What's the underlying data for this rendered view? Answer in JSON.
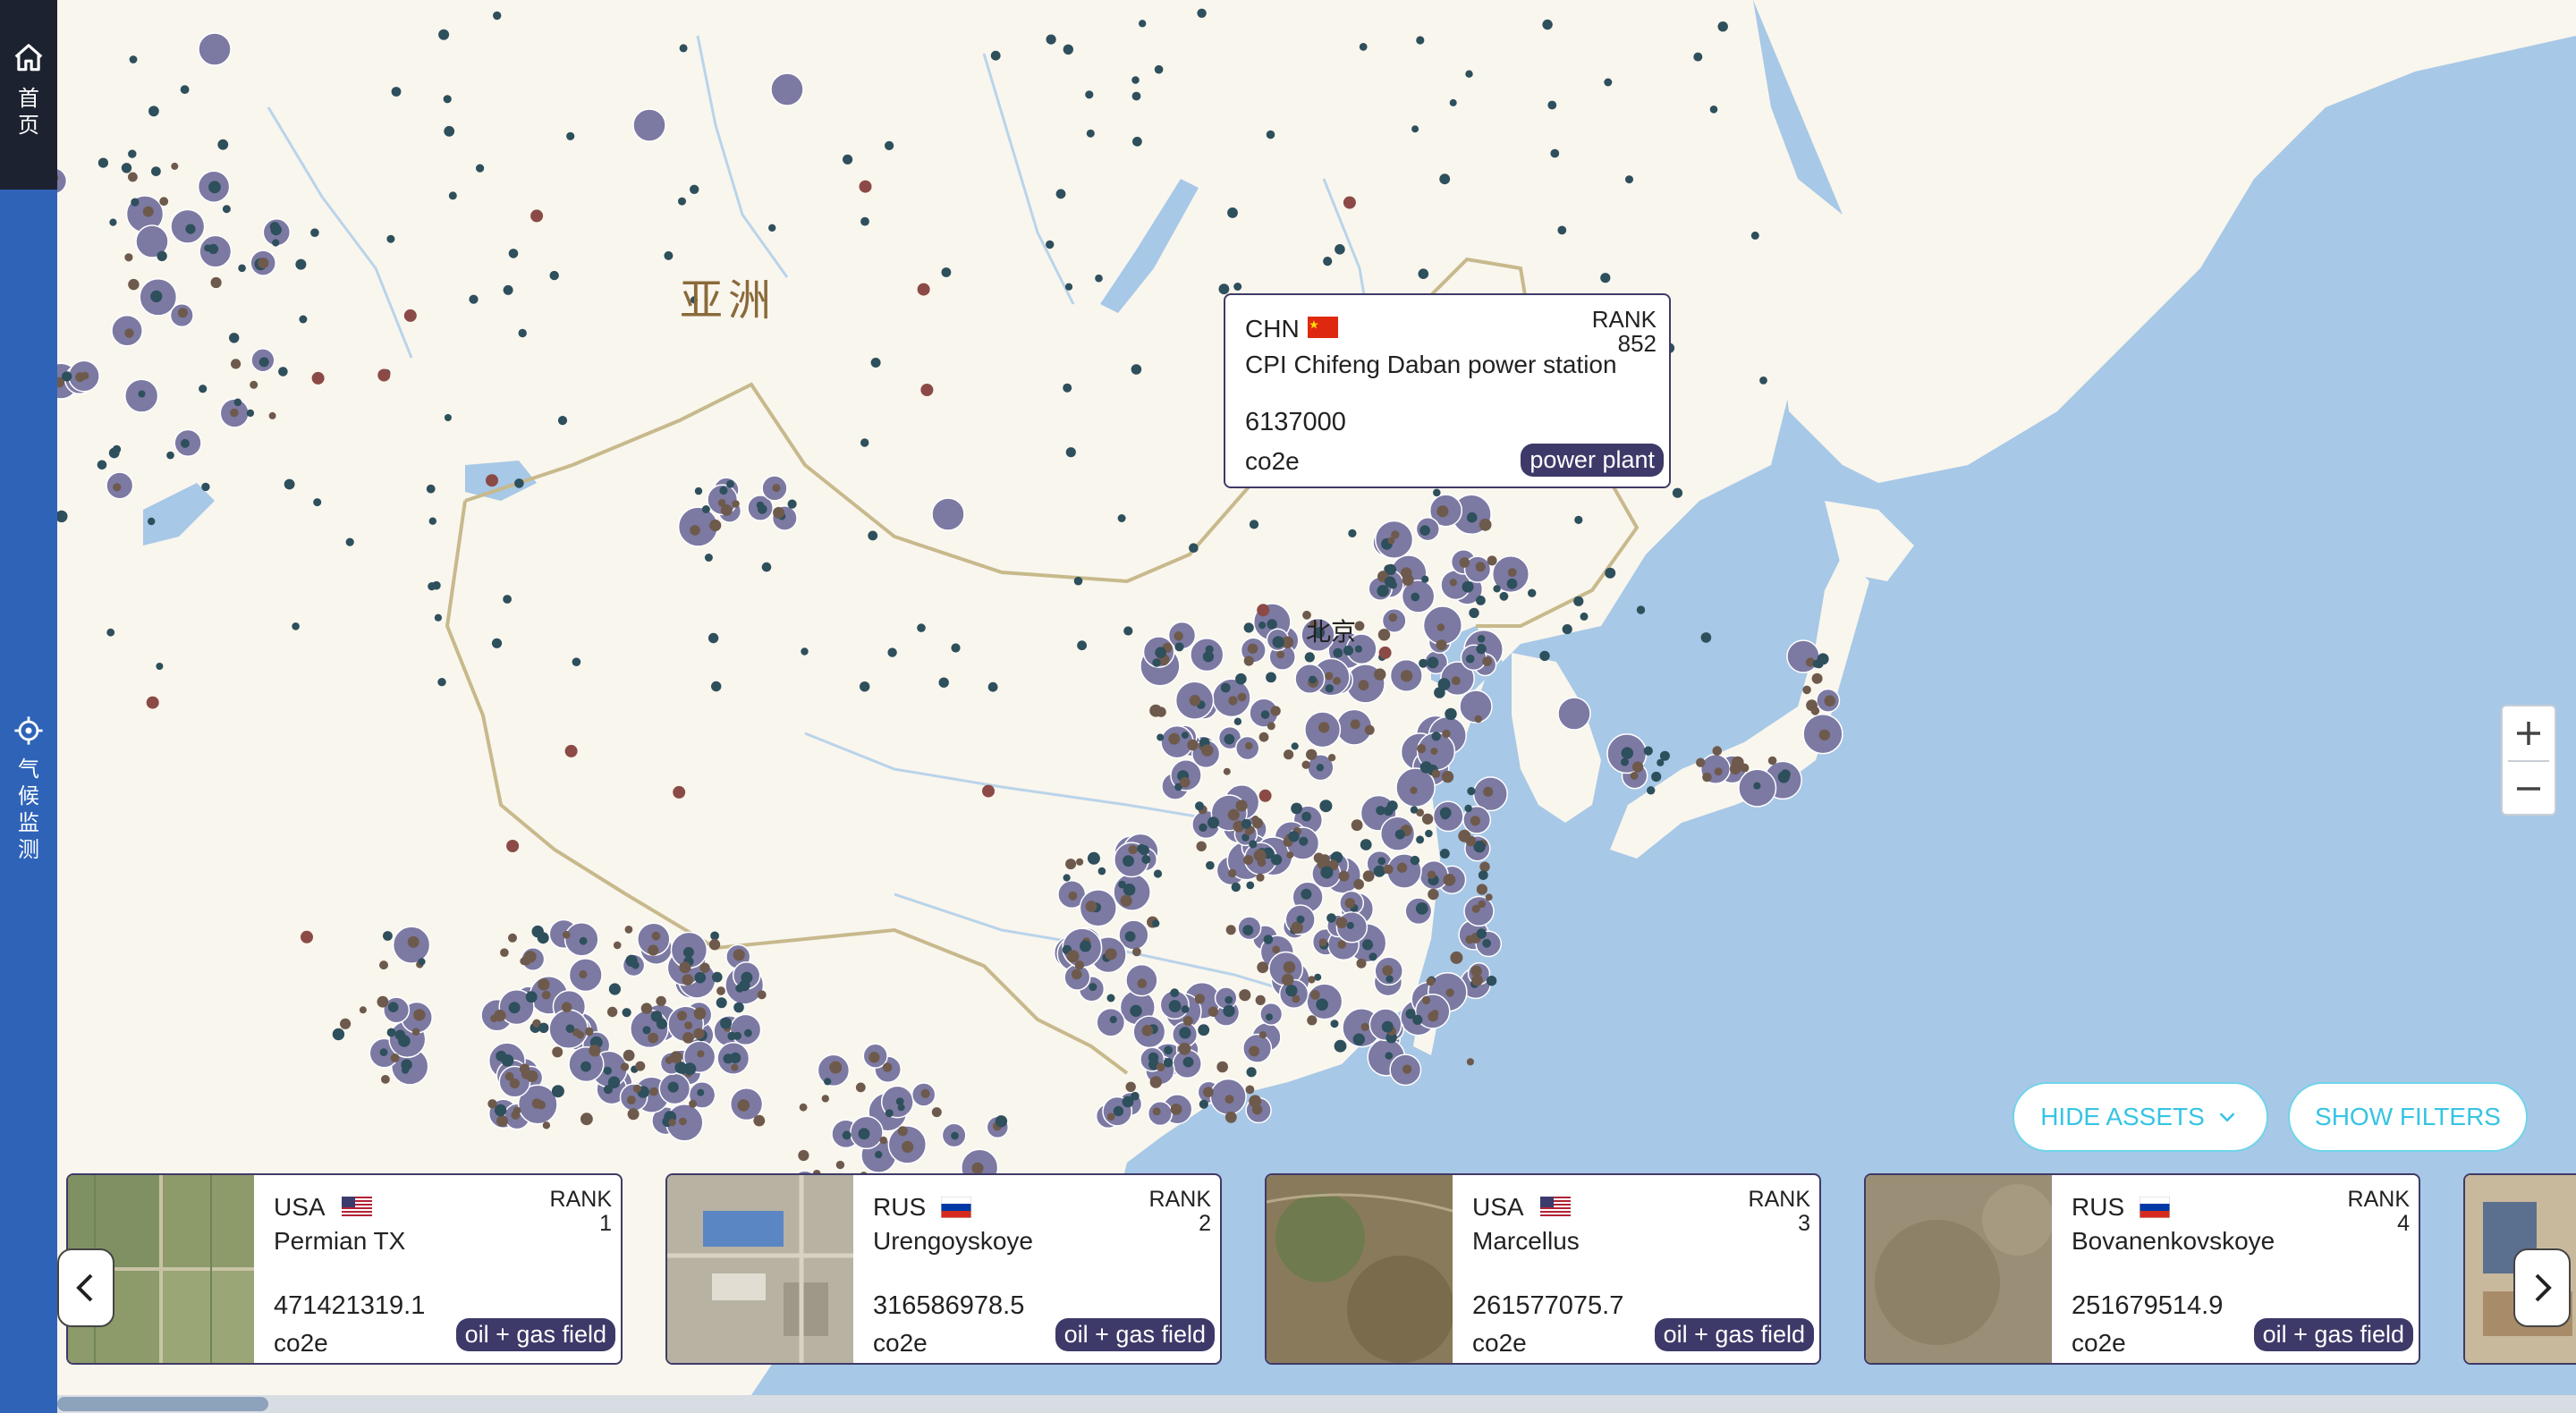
{
  "sidebar": {
    "home_label": "首页",
    "climate_label": "气候监测"
  },
  "map": {
    "continent_label": "亚洲",
    "city_label": "北京"
  },
  "popup": {
    "country_code": "CHN",
    "rank_label": "RANK",
    "rank_value": "852",
    "name": "CPI Chifeng Daban power station",
    "value": "6137000",
    "unit": "co2e",
    "category": "power plant"
  },
  "zoom": {
    "in_icon": "plus-icon",
    "out_icon": "minus-icon"
  },
  "controls": {
    "hide_assets_label": "HIDE ASSETS",
    "show_filters_label": "SHOW FILTERS"
  },
  "colors": {
    "sidebar": "#2e63b8",
    "sidebar_home": "#1d2230",
    "asset_bubble": "#7c7aa3",
    "asset_dot": "#2e4f5c",
    "field_dot": "#6e5a4c",
    "red_dot": "#8c4a46",
    "tag_bg": "#3d3968",
    "accent": "#36c4e3"
  },
  "cards": [
    {
      "country_code": "USA",
      "flag": "us-flag",
      "rank_label": "RANK",
      "rank_value": "1",
      "name": "Permian TX",
      "value": "471421319.1",
      "unit": "co2e",
      "category": "oil + gas field"
    },
    {
      "country_code": "RUS",
      "flag": "ru-flag",
      "rank_label": "RANK",
      "rank_value": "2",
      "name": "Urengoyskoye",
      "value": "316586978.5",
      "unit": "co2e",
      "category": "oil + gas field"
    },
    {
      "country_code": "USA",
      "flag": "us-flag",
      "rank_label": "RANK",
      "rank_value": "3",
      "name": "Marcellus",
      "value": "261577075.7",
      "unit": "co2e",
      "category": "oil + gas field"
    },
    {
      "country_code": "RUS",
      "flag": "ru-flag",
      "rank_label": "RANK",
      "rank_value": "4",
      "name": "Bovanenkovskoye",
      "value": "251679514.9",
      "unit": "co2e",
      "category": "oil + gas field"
    }
  ]
}
